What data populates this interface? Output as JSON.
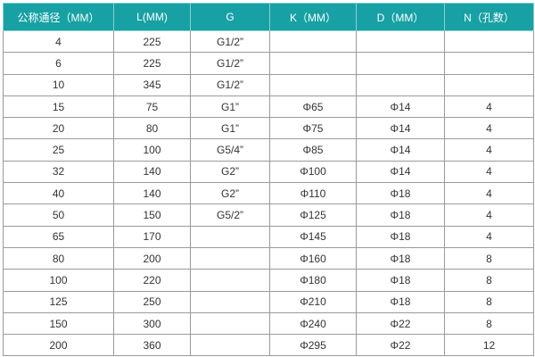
{
  "table": {
    "header_color": "#17a1a5",
    "columns": [
      "公称通径（MM）",
      "L(MM)",
      "G",
      "K（MM）",
      "D（MM）",
      "N（孔数）"
    ],
    "rows": [
      [
        "4",
        "225",
        "G1/2”",
        "",
        "",
        ""
      ],
      [
        "6",
        "225",
        "G1/2”",
        "",
        "",
        ""
      ],
      [
        "10",
        "345",
        "G1/2”",
        "",
        "",
        ""
      ],
      [
        "15",
        "75",
        "G1”",
        "Φ65",
        "Φ14",
        "4"
      ],
      [
        "20",
        "80",
        "G1”",
        "Φ75",
        "Φ14",
        "4"
      ],
      [
        "25",
        "100",
        "G5/4”",
        "Φ85",
        "Φ14",
        "4"
      ],
      [
        "32",
        "140",
        "G2”",
        "Φ100",
        "Φ14",
        "4"
      ],
      [
        "40",
        "140",
        "G2”",
        "Φ110",
        "Φ18",
        "4"
      ],
      [
        "50",
        "150",
        "G5/2”",
        "Φ125",
        "Φ18",
        "4"
      ],
      [
        "65",
        "170",
        "",
        "Φ145",
        "Φ18",
        "4"
      ],
      [
        "80",
        "200",
        "",
        "Φ160",
        "Φ18",
        "8"
      ],
      [
        "100",
        "220",
        "",
        "Φ180",
        "Φ18",
        "8"
      ],
      [
        "125",
        "250",
        "",
        "Φ210",
        "Φ18",
        "8"
      ],
      [
        "150",
        "300",
        "",
        "Φ240",
        "Φ22",
        "8"
      ],
      [
        "200",
        "360",
        "",
        "Φ295",
        "Φ22",
        "12"
      ]
    ]
  }
}
